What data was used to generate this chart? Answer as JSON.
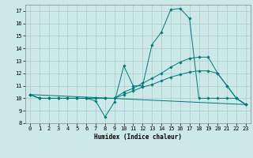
{
  "xlabel": "Humidex (Indice chaleur)",
  "background_color": "#cce8e8",
  "grid_color": "#aacccc",
  "line_color": "#007878",
  "xlim": [
    -0.5,
    23.5
  ],
  "ylim": [
    8,
    17.5
  ],
  "xticks": [
    0,
    1,
    2,
    3,
    4,
    5,
    6,
    7,
    8,
    9,
    10,
    11,
    12,
    13,
    14,
    15,
    16,
    17,
    18,
    19,
    20,
    21,
    22,
    23
  ],
  "yticks": [
    8,
    9,
    10,
    11,
    12,
    13,
    14,
    15,
    16,
    17
  ],
  "lines": [
    {
      "x": [
        0,
        1,
        2,
        3,
        4,
        5,
        6,
        7,
        8,
        9,
        10,
        11,
        12,
        13,
        14,
        15,
        16,
        17,
        18,
        19,
        20,
        21,
        22,
        23
      ],
      "y": [
        10.3,
        10.0,
        10.0,
        10.0,
        10.0,
        10.0,
        10.0,
        9.8,
        8.5,
        9.7,
        12.6,
        11.0,
        11.0,
        14.3,
        15.3,
        17.1,
        17.2,
        16.4,
        10.0,
        10.0,
        10.0,
        10.0,
        10.0,
        9.5
      ],
      "markers": true
    },
    {
      "x": [
        0,
        1,
        2,
        3,
        4,
        5,
        6,
        7,
        8,
        9,
        10,
        11,
        12,
        13,
        14,
        15,
        16,
        17,
        18,
        19,
        20,
        21,
        22,
        23
      ],
      "y": [
        10.3,
        10.0,
        10.0,
        10.0,
        10.0,
        10.0,
        10.0,
        10.0,
        10.0,
        10.0,
        10.5,
        10.8,
        11.2,
        11.6,
        12.0,
        12.5,
        12.9,
        13.2,
        13.3,
        13.3,
        12.0,
        11.0,
        10.0,
        9.5
      ],
      "markers": true
    },
    {
      "x": [
        0,
        1,
        2,
        3,
        4,
        5,
        6,
        7,
        8,
        9,
        10,
        11,
        12,
        13,
        14,
        15,
        16,
        17,
        18,
        19,
        20,
        21,
        22,
        23
      ],
      "y": [
        10.3,
        10.0,
        10.0,
        10.0,
        10.0,
        10.0,
        10.0,
        10.0,
        10.0,
        10.0,
        10.3,
        10.6,
        10.9,
        11.1,
        11.4,
        11.7,
        11.9,
        12.1,
        12.2,
        12.2,
        12.0,
        11.0,
        10.0,
        9.5
      ],
      "markers": true
    },
    {
      "x": [
        0,
        23
      ],
      "y": [
        10.3,
        9.5
      ],
      "markers": false
    }
  ]
}
